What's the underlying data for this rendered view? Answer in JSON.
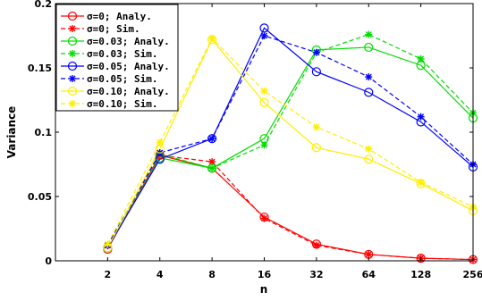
{
  "chart_data": {
    "type": "line",
    "xlabel": "n",
    "ylabel": "Variance",
    "x_scale": "log2",
    "x": [
      2,
      4,
      8,
      16,
      32,
      64,
      128,
      256
    ],
    "x_tick_labels": [
      "2",
      "4",
      "8",
      "16",
      "32",
      "64",
      "128",
      "256"
    ],
    "xlim": [
      1,
      256
    ],
    "ylim": [
      0,
      0.2
    ],
    "y_ticks": [
      0,
      0.05,
      0.1,
      0.15,
      0.2
    ],
    "y_tick_labels": [
      "0",
      "0.05",
      "0.1",
      "0.15",
      "0.2"
    ],
    "grid": false,
    "legend_position": "top-left",
    "series": [
      {
        "name": "σ=0; Analy.",
        "color": "#ff0000",
        "line": "solid",
        "marker": "circle",
        "values": [
          0.009,
          0.082,
          0.072,
          0.034,
          0.013,
          0.005,
          0.002,
          0.001
        ]
      },
      {
        "name": "σ=0; Sim.",
        "color": "#ff0000",
        "line": "dashed",
        "marker": "star",
        "values": [
          0.012,
          0.082,
          0.077,
          0.033,
          0.012,
          0.005,
          0.002,
          0.001
        ]
      },
      {
        "name": "σ=0.03; Analy.",
        "color": "#00dd00",
        "line": "solid",
        "marker": "circle",
        "values": [
          0.01,
          0.08,
          0.072,
          0.095,
          0.164,
          0.166,
          0.152,
          0.111
        ]
      },
      {
        "name": "σ=0.03; Sim.",
        "color": "#00dd00",
        "line": "dashed",
        "marker": "star",
        "values": [
          0.012,
          0.083,
          0.072,
          0.09,
          0.162,
          0.176,
          0.157,
          0.115
        ]
      },
      {
        "name": "σ=0.05; Analy.",
        "color": "#0000ff",
        "line": "solid",
        "marker": "circle",
        "values": [
          0.01,
          0.079,
          0.095,
          0.181,
          0.147,
          0.131,
          0.108,
          0.073
        ]
      },
      {
        "name": "σ=0.05; Sim.",
        "color": "#0000ff",
        "line": "dashed",
        "marker": "star",
        "values": [
          0.012,
          0.084,
          0.095,
          0.175,
          0.162,
          0.143,
          0.112,
          0.075
        ]
      },
      {
        "name": "σ=0.10; Analy.",
        "color": "#ffee00",
        "line": "solid",
        "marker": "circle",
        "values": [
          0.01,
          0.087,
          0.172,
          0.123,
          0.088,
          0.079,
          0.06,
          0.039
        ]
      },
      {
        "name": "σ=0.10; Sim.",
        "color": "#ffee00",
        "line": "dashed",
        "marker": "star",
        "values": [
          0.013,
          0.092,
          0.173,
          0.132,
          0.104,
          0.087,
          0.061,
          0.042
        ]
      }
    ]
  }
}
